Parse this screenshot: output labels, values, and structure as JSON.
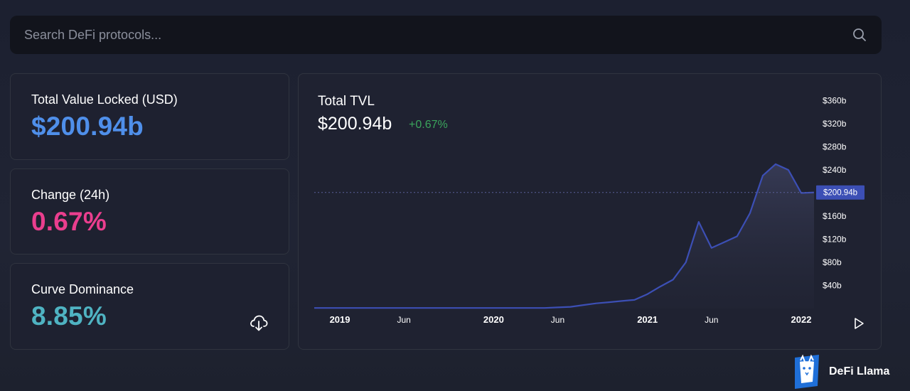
{
  "search": {
    "placeholder": "Search DeFi protocols..."
  },
  "cards": {
    "tvl": {
      "label": "Total Value Locked (USD)",
      "value": "$200.94b"
    },
    "change": {
      "label": "Change (24h)",
      "value": "0.67%"
    },
    "dominance": {
      "label": "Curve Dominance",
      "value": "8.85%"
    }
  },
  "chart_header": {
    "title": "Total TVL",
    "value": "$200.94b",
    "change": "+0.67%"
  },
  "brand": {
    "name": "DeFi Llama"
  },
  "colors": {
    "accent_blue": "#4f8fea",
    "change_pink": "#ea3e8e",
    "dominance_teal": "#4fb3c2",
    "positive_green": "#3ba55c",
    "line": "#3c4fb5"
  },
  "icons": [
    "search-icon",
    "cloud-download-icon",
    "play-icon",
    "llama-logo"
  ],
  "chart_data": {
    "type": "area",
    "title": "Total TVL",
    "xlabel": "",
    "ylabel": "",
    "x": [
      "2018-11",
      "2018-12",
      "2019-01",
      "2019-02",
      "2019-03",
      "2019-04",
      "2019-05",
      "2019-06",
      "2019-07",
      "2019-08",
      "2019-09",
      "2019-10",
      "2019-11",
      "2019-12",
      "2020-01",
      "2020-02",
      "2020-03",
      "2020-04",
      "2020-05",
      "2020-06",
      "2020-07",
      "2020-08",
      "2020-09",
      "2020-10",
      "2020-11",
      "2020-12",
      "2021-01",
      "2021-02",
      "2021-03",
      "2021-04",
      "2021-05",
      "2021-06",
      "2021-07",
      "2021-08",
      "2021-09",
      "2021-10",
      "2021-11",
      "2021-12",
      "2022-01",
      "2022-02"
    ],
    "series": [
      {
        "values": [
          1,
          1,
          1,
          1,
          1,
          1,
          1,
          1,
          1,
          1,
          1,
          1,
          1,
          1,
          1,
          1,
          1,
          1,
          1,
          2,
          3,
          6,
          9,
          11,
          13,
          15,
          25,
          38,
          50,
          80,
          150,
          105,
          115,
          125,
          165,
          230,
          250,
          240,
          200,
          201
        ]
      }
    ],
    "y_ticks": [
      "$40b",
      "$80b",
      "$120b",
      "$160b",
      "$240b",
      "$280b",
      "$320b",
      "$360b"
    ],
    "x_ticks": [
      "2019",
      "Jun",
      "2020",
      "Jun",
      "2021",
      "Jun",
      "2022"
    ],
    "current_marker": "$200.94b",
    "ylim": [
      0,
      370
    ],
    "grid": false,
    "legend": "none"
  }
}
